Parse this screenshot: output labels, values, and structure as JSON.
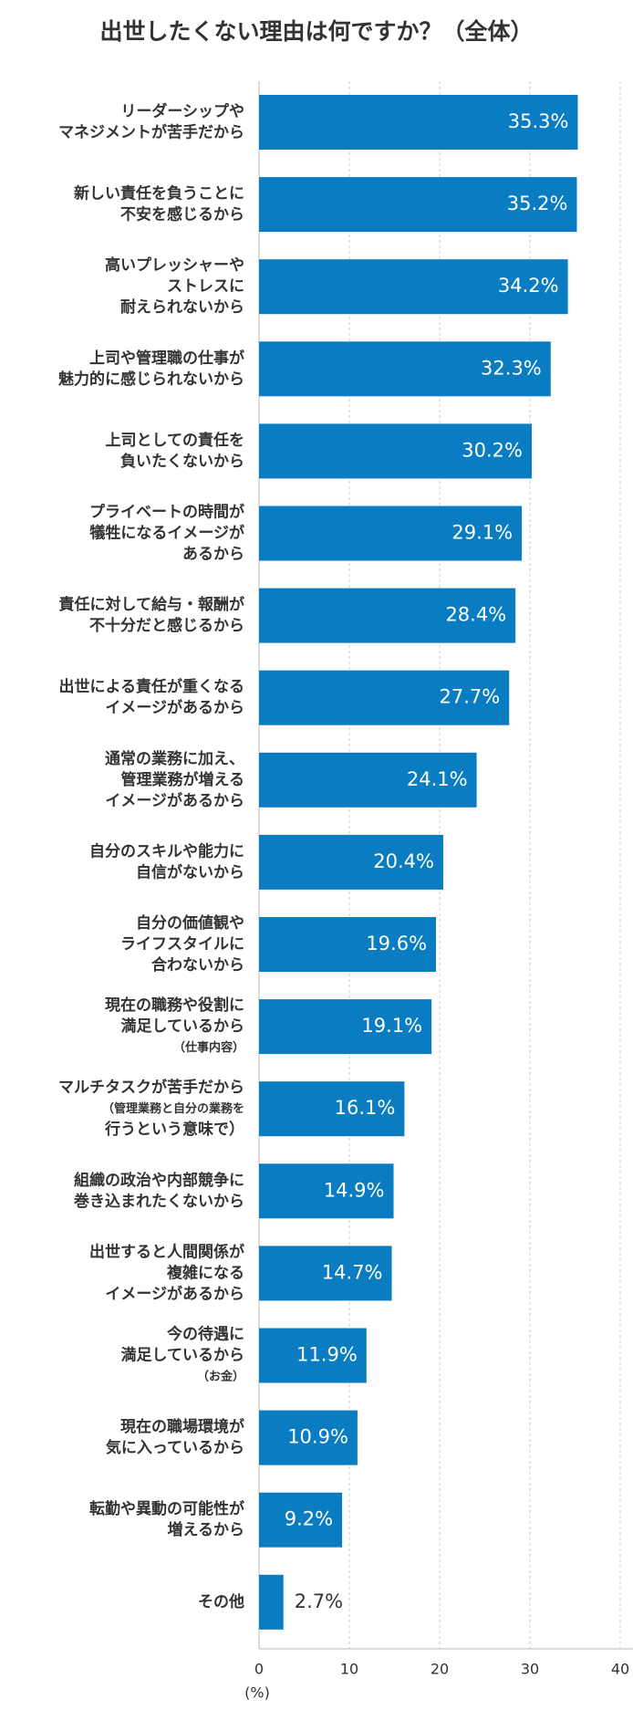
{
  "chart_data": {
    "type": "hbar",
    "title": "出世したくない理由は何ですか？（全体）",
    "categories": [
      "リーダーシップや\nマネジメントが苦手だから",
      "新しい責任を負うことに\n不安を感じるから",
      "高いプレッシャーや\nストレスに\n耐えられないから",
      "上司や管理職の仕事が\n魅力的に感じられないから",
      "上司としての責任を\n負いたくないから",
      "プライベートの時間が\n犠牲になるイメージが\nあるから",
      "責任に対して給与・報酬が\n不十分だと感じるから",
      "出世による責任が重くなる\nイメージがあるから",
      "通常の業務に加え、\n管理業務が増える\nイメージがあるから",
      "自分のスキルや能力に\n自信がないから",
      "自分の価値観や\nライフスタイルに\n合わないから",
      "現在の職務や役割に\n満足しているから\n（仕事内容）",
      "マルチタスクが苦手だから\n（管理業務と自分の業務を\n行うという意味で）",
      "組織の政治や内部競争に\n巻き込まれたくないから",
      "出世すると人間関係が\n複雑になる\nイメージがあるから",
      "今の待遇に\n満足しているから\n（お金）",
      "現在の職場環境が\n気に入っているから",
      "転勤や異動の可能性が\n増えるから",
      "その他"
    ],
    "values": [
      35.3,
      35.2,
      34.2,
      32.3,
      30.2,
      29.1,
      28.4,
      27.7,
      24.1,
      20.4,
      19.6,
      19.1,
      16.1,
      14.9,
      14.7,
      11.9,
      10.9,
      9.2,
      2.7
    ],
    "value_labels": [
      "35.3%",
      "35.2%",
      "34.2%",
      "32.3%",
      "30.2%",
      "29.1%",
      "28.4%",
      "27.7%",
      "24.1%",
      "20.4%",
      "19.6%",
      "19.1%",
      "16.1%",
      "14.9%",
      "14.7%",
      "11.9%",
      "10.9%",
      "9.2%",
      "2.7%"
    ],
    "color": "#0a7dc2",
    "xlim": [
      0,
      40
    ],
    "xticks": [
      0,
      10,
      20,
      30,
      40
    ],
    "xlabel": "(%)",
    "grid": true
  }
}
